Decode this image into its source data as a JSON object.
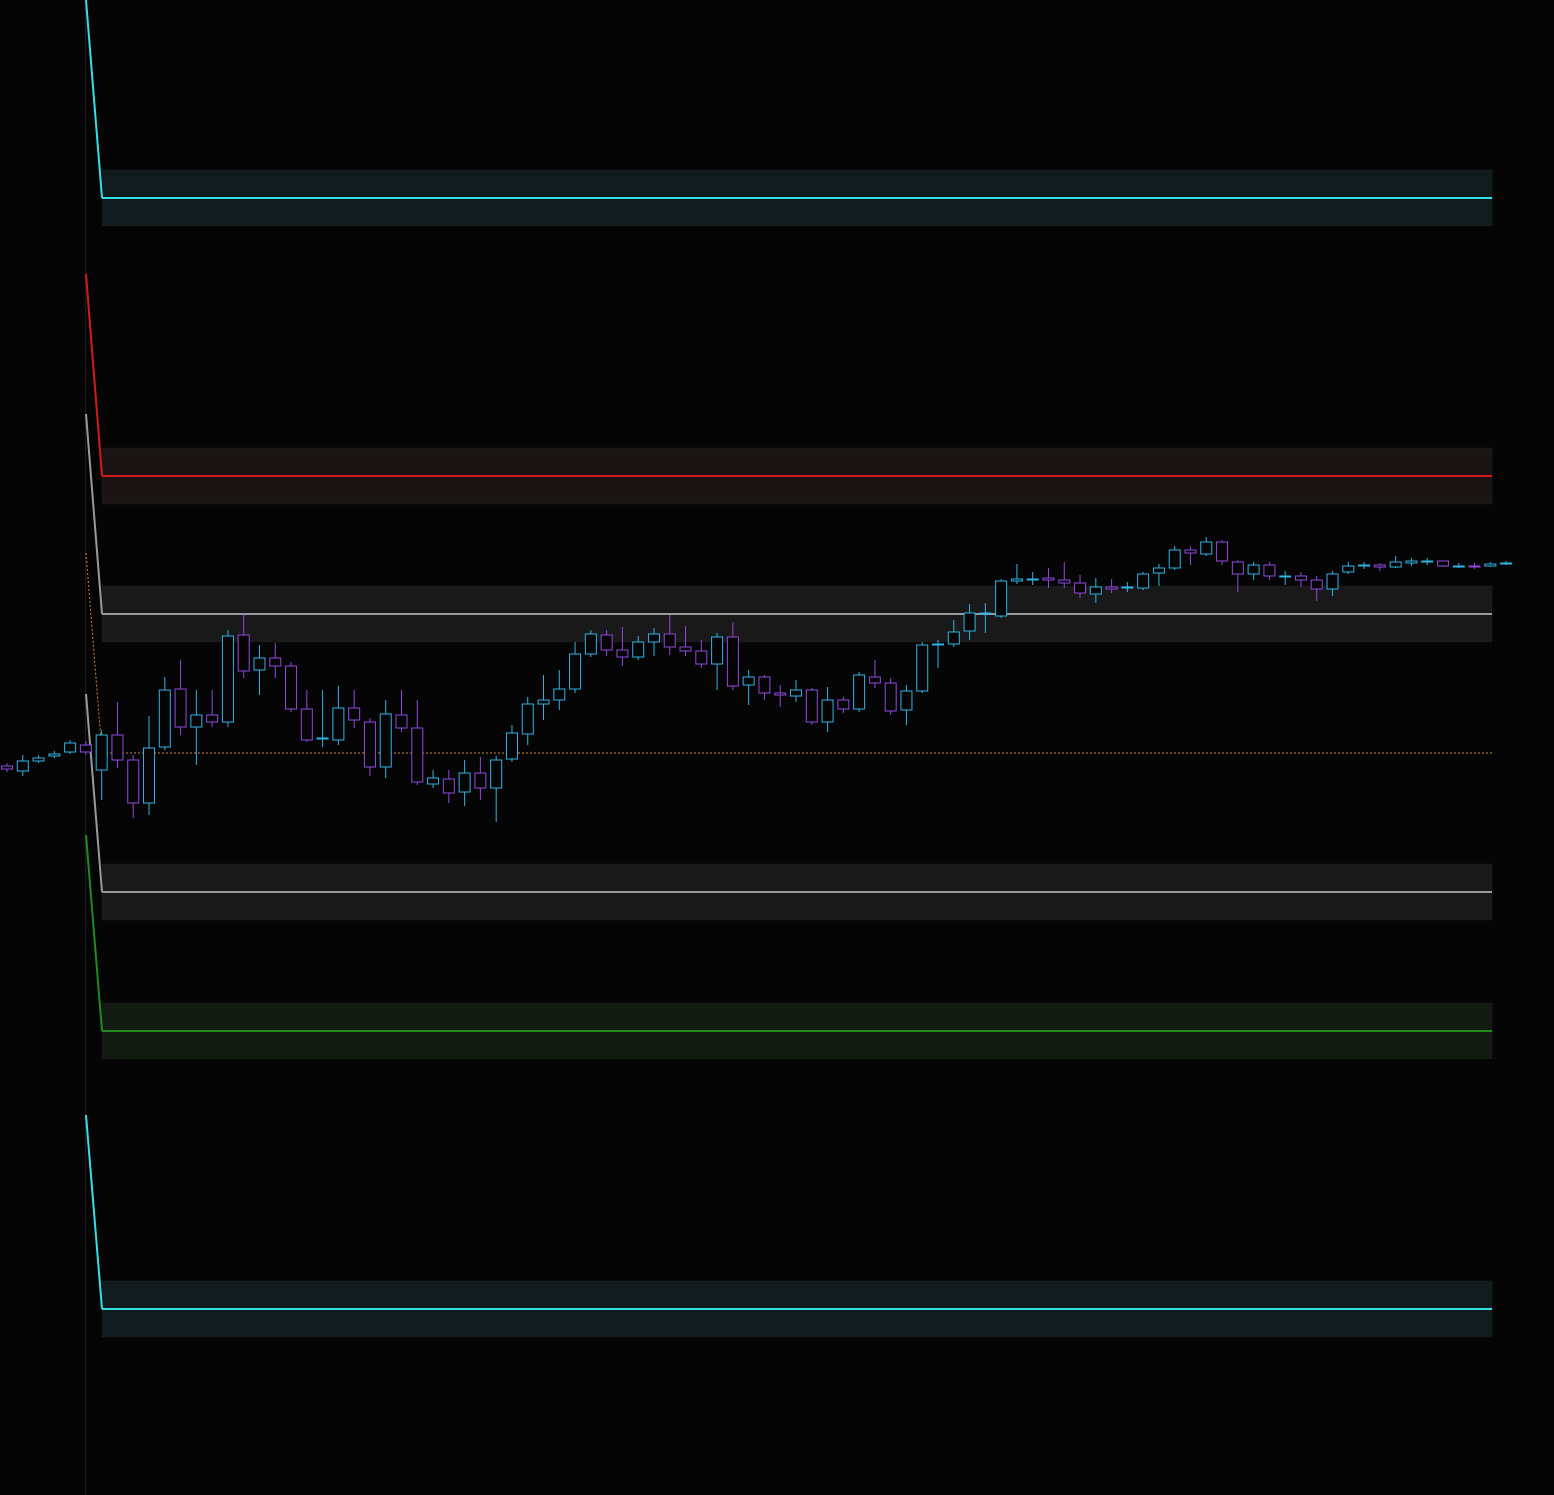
{
  "chart_data": {
    "type": "candlestick",
    "ylim": [
      0,
      149.5
    ],
    "up_color": "#2fb4e6",
    "down_color": "#9148e0",
    "open": [
      72.9,
      72.4,
      73.4,
      73.9,
      74.3,
      75.0,
      72.5,
      76.0,
      73.5,
      69.2,
      74.8,
      80.6,
      76.8,
      78.0,
      77.3,
      86.0,
      82.5,
      83.7,
      82.9,
      78.6,
      75.7,
      75.5,
      78.7,
      77.3,
      72.8,
      78.0,
      76.7,
      71.1,
      71.6,
      70.3,
      72.2,
      70.7,
      73.6,
      76.1,
      79.1,
      79.5,
      80.6,
      84.1,
      86.0,
      84.5,
      83.8,
      85.3,
      86.1,
      84.8,
      84.4,
      83.1,
      85.8,
      81.0,
      81.8,
      80.2,
      79.9,
      80.5,
      77.3,
      79.5,
      78.6,
      81.8,
      81.2,
      78.5,
      80.4,
      85.0,
      85.1,
      86.4,
      88.2,
      87.9,
      91.4,
      91.5,
      91.7,
      91.5,
      91.2,
      90.1,
      90.8,
      90.7,
      90.7,
      92.2,
      92.7,
      94.5,
      94.1,
      95.3,
      93.3,
      92.1,
      93.0,
      91.9,
      91.9,
      91.5,
      90.6,
      92.3,
      92.9,
      93.0,
      92.8,
      93.2,
      93.3,
      93.4,
      92.9,
      92.9,
      92.9,
      93.1
    ],
    "high": [
      73.2,
      74.0,
      74.0,
      74.4,
      75.5,
      75.4,
      76.5,
      79.3,
      74.0,
      77.9,
      81.8,
      83.5,
      80.5,
      80.5,
      86.5,
      88.1,
      85.0,
      85.2,
      83.3,
      80.5,
      80.5,
      80.9,
      80.5,
      77.7,
      79.5,
      80.5,
      79.5,
      72.5,
      72.5,
      73.5,
      73.8,
      73.9,
      77.0,
      79.8,
      82.0,
      82.5,
      85.3,
      86.5,
      86.5,
      86.8,
      85.9,
      86.7,
      88.0,
      86.9,
      85.5,
      86.2,
      87.3,
      82.5,
      82.0,
      81.0,
      81.5,
      80.7,
      80.8,
      79.8,
      82.3,
      83.5,
      81.7,
      81.0,
      85.3,
      85.5,
      87.5,
      89.1,
      89.2,
      91.6,
      93.1,
      92.3,
      92.7,
      93.3,
      92.0,
      91.7,
      91.6,
      91.3,
      92.3,
      93.1,
      94.9,
      94.9,
      95.8,
      95.5,
      93.5,
      93.3,
      93.3,
      92.4,
      92.3,
      91.9,
      92.4,
      93.3,
      93.3,
      93.2,
      93.9,
      93.7,
      93.7,
      93.4,
      93.2,
      93.2,
      93.3,
      93.4
    ],
    "low": [
      72.3,
      71.9,
      73.2,
      73.7,
      74.1,
      74.0,
      69.5,
      72.7,
      67.7,
      68.0,
      74.5,
      76.0,
      73.0,
      76.8,
      76.8,
      81.7,
      80.0,
      81.7,
      78.3,
      75.3,
      74.8,
      75.0,
      76.7,
      71.9,
      71.7,
      76.3,
      71.0,
      70.7,
      69.2,
      68.9,
      69.5,
      67.3,
      73.3,
      75.0,
      77.5,
      78.5,
      80.2,
      83.8,
      83.9,
      82.9,
      83.5,
      83.9,
      84.0,
      83.9,
      82.7,
      80.5,
      80.5,
      79.0,
      79.5,
      78.8,
      79.3,
      77.0,
      76.3,
      78.2,
      78.3,
      80.7,
      78.0,
      77.0,
      80.2,
      82.7,
      84.8,
      85.5,
      86.2,
      87.7,
      91.1,
      91.0,
      90.7,
      90.7,
      89.7,
      89.2,
      90.2,
      90.3,
      90.5,
      90.9,
      92.5,
      93.0,
      93.9,
      93.0,
      90.3,
      91.5,
      91.5,
      91.0,
      90.8,
      89.4,
      89.9,
      92.1,
      92.6,
      92.4,
      92.7,
      92.9,
      93.0,
      92.8,
      92.7,
      92.6,
      92.8,
      93.0
    ],
    "close": [
      72.6,
      73.4,
      73.7,
      74.1,
      75.2,
      74.3,
      76.0,
      73.5,
      69.2,
      74.7,
      80.5,
      76.8,
      78.0,
      77.3,
      85.9,
      82.4,
      83.7,
      82.9,
      78.6,
      75.5,
      75.7,
      78.7,
      77.5,
      72.8,
      78.1,
      76.7,
      71.3,
      71.7,
      70.2,
      72.2,
      70.7,
      73.5,
      76.2,
      79.1,
      79.5,
      80.6,
      84.1,
      86.1,
      84.5,
      83.8,
      85.3,
      86.1,
      84.8,
      84.4,
      83.1,
      85.8,
      80.9,
      81.8,
      80.2,
      80.0,
      80.5,
      77.3,
      79.5,
      78.6,
      82.0,
      81.2,
      78.4,
      80.4,
      85.0,
      85.1,
      86.3,
      88.2,
      88.2,
      91.4,
      91.6,
      91.6,
      91.5,
      91.2,
      90.2,
      90.8,
      90.6,
      90.8,
      92.1,
      92.7,
      94.5,
      94.2,
      95.3,
      93.4,
      92.1,
      93.0,
      91.9,
      91.9,
      91.5,
      90.6,
      92.1,
      92.9,
      93.0,
      92.8,
      93.3,
      93.4,
      93.4,
      92.9,
      92.9,
      92.8,
      93.1,
      93.2
    ],
    "levels": [
      {
        "color": "#33e0e6",
        "style": "solid",
        "start": 149.5,
        "value": 129.7,
        "zone": [
          132.5,
          126.9
        ],
        "zone_color": "#111b1d"
      },
      {
        "color": "#d41a1a",
        "style": "solid",
        "start": 122.1,
        "value": 101.9,
        "zone": [
          104.7,
          99.1
        ],
        "zone_color": "#1b1414"
      },
      {
        "color": "#9a9a9a",
        "style": "solid",
        "start": 108.1,
        "value": 88.1,
        "zone": [
          90.9,
          85.3
        ],
        "zone_color": "#191919"
      },
      {
        "color": "#d08a2a",
        "style": "dotted",
        "start": 94.2,
        "value": 74.2
      },
      {
        "color": "#9a9a9a",
        "style": "solid",
        "start": 80.1,
        "value": 60.3,
        "zone": [
          63.1,
          57.5
        ],
        "zone_color": "#191919"
      },
      {
        "color": "#1f8c1f",
        "style": "solid",
        "start": 66.0,
        "value": 46.4,
        "zone": [
          49.2,
          43.6
        ],
        "zone_color": "#121a12"
      },
      {
        "color": "#33e0e6",
        "style": "solid",
        "start": 38.0,
        "value": 18.6,
        "zone": [
          21.4,
          15.8
        ],
        "zone_color": "#111b1d"
      }
    ]
  }
}
